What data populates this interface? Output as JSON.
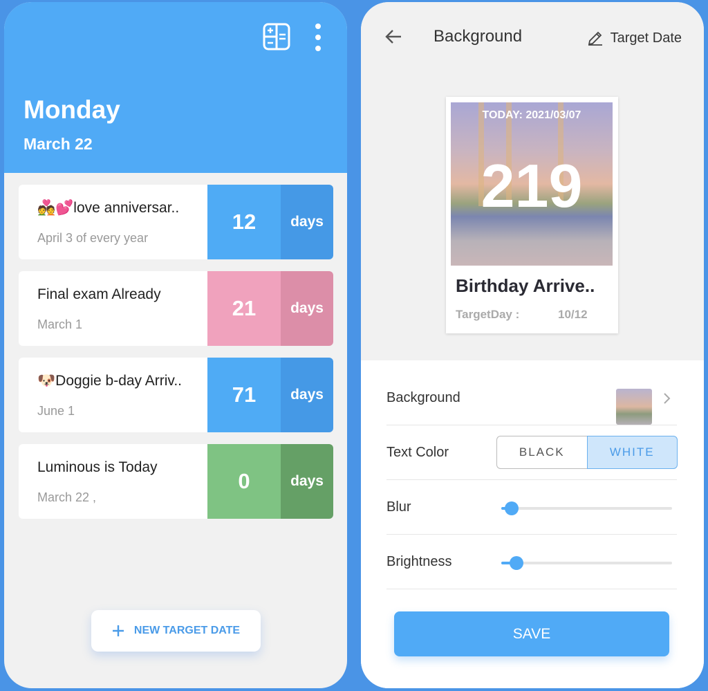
{
  "left": {
    "day": "Monday",
    "date": "March 22",
    "icons": [
      "calculator-icon",
      "more-vert-icon"
    ],
    "items": [
      {
        "title": "💑💕love anniversar..",
        "sub": "April 3 of every year",
        "count": "12",
        "unit": "days",
        "color": "#4fabf5",
        "unit_color": "#4599e6"
      },
      {
        "title": "Final exam Already",
        "sub": "March 1",
        "count": "21",
        "unit": "days",
        "color": "#f0a2bd",
        "unit_color": "#dc8ea8"
      },
      {
        "title": "🐶Doggie b-day Arriv..",
        "sub": "June 1",
        "count": "71",
        "unit": "days",
        "color": "#4fabf5",
        "unit_color": "#4599e6"
      },
      {
        "title": "Luminous is Today",
        "sub": "March 22 ,",
        "count": "0",
        "unit": "days",
        "color": "#7fc383",
        "unit_color": "#65a066"
      }
    ],
    "new_button": "NEW TARGET DATE"
  },
  "right": {
    "title": "Background",
    "target_date": "Target Date",
    "preview": {
      "today": "TODAY: 2021/03/07",
      "count": "219",
      "title": "Birthday Arrive..",
      "target_label": "TargetDay :",
      "target_value": "10/12"
    },
    "rows": {
      "background": "Background",
      "text_color": "Text Color",
      "black": "BLACK",
      "white": "WHITE",
      "selected": "WHITE",
      "blur": "Blur",
      "blur_value": 0.06,
      "brightness": "Brightness",
      "brightness_value": 0.09
    },
    "save": "SAVE"
  }
}
